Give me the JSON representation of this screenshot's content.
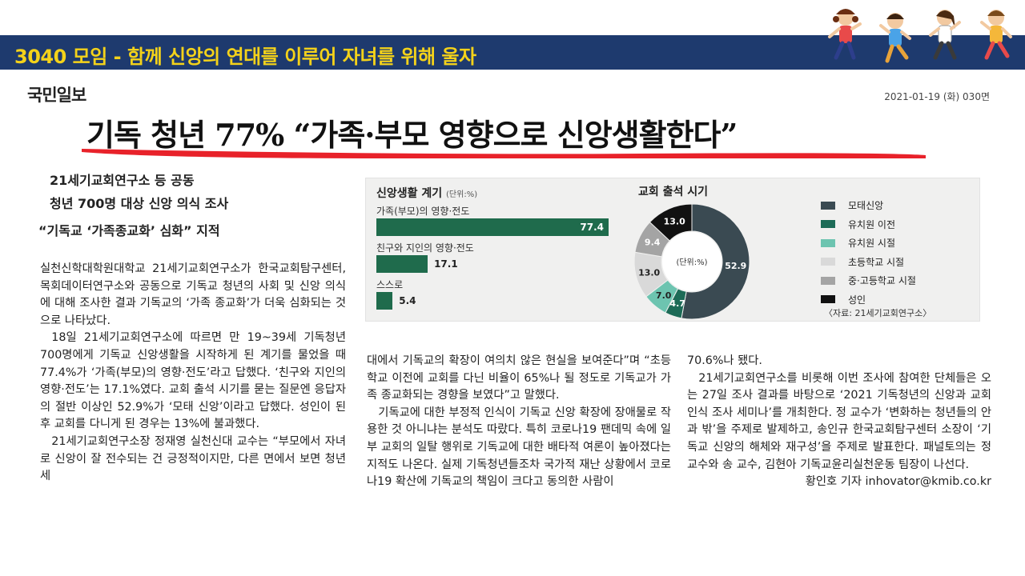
{
  "banner": {
    "title": "3040 모임 - 함께 신앙의 연대를 이루어 자녀를 위해 울자"
  },
  "newspaper": {
    "name": "국민일보",
    "date": "2021-01-19 (화) 030면"
  },
  "headline": "기독 청년 77% “가족·부모 영향으로 신앙생활한다”",
  "subheads": [
    "21세기교회연구소 등 공동",
    "청년 700명 대상 신앙 의식 조사",
    "“기독교 ‘가족종교화’ 심화” 지적"
  ],
  "body": {
    "col1": [
      "실천신학대학원대학교 21세기교회연구소가 한국교회탐구센터, 목회데이터연구소와 공동으로 기독교 청년의 사회 및 신앙 의식에 대해 조사한 결과 기독교의 ‘가족 종교화’가 더욱 심화되는 것으로 나타났다.",
      "18일 21세기교회연구소에 따르면 만 19~39세 기독청년 700명에게 기독교 신앙생활을 시작하게 된 계기를 물었을 때 77.4%가 ‘가족(부모)의 영향·전도’라고 답했다. ‘친구와 지인의 영향·전도’는 17.1%였다. 교회 출석 시기를 묻는 질문엔 응답자의 절반 이상인 52.9%가 ‘모태 신앙’이라고 답했다. 성인이 된 후 교회를 다니게 된 경우는 13%에 불과했다.",
      "21세기교회연구소장 정재영 실천신대 교수는 “부모에서 자녀로 신앙이 잘 전수되는 건 긍정적이지만, 다른 면에서 보면 청년세"
    ],
    "col2": [
      "대에서 기독교의 확장이 여의치 않은 현실을 보여준다”며 “초등학교 이전에 교회를 다닌 비율이 65%나 될 정도로 기독교가 가족 종교화되는 경향을 보였다”고 말했다.",
      "기독교에 대한 부정적 인식이 기독교 신앙 확장에 장애물로 작용한 것 아니냐는 분석도 따랐다. 특히 코로나19 팬데믹 속에 일부 교회의 일탈 행위로 기독교에 대한 배타적 여론이 높아졌다는 지적도 나온다. 실제 기독청년들조차 국가적 재난 상황에서 코로나19 확산에 기독교의 책임이 크다고 동의한 사람이"
    ],
    "col3": [
      "70.6%나 됐다.",
      "21세기교회연구소를 비롯해 이번 조사에 참여한 단체들은 오는 27일 조사 결과를 바탕으로 ‘2021 기독청년의 신앙과 교회 인식 조사 세미나’를 개최한다. 정 교수가 ‘변화하는 청년들의 안과 밖’을 주제로 발제하고, 송인규 한국교회탐구센터 소장이 ‘기독교 신앙의 해체와 재구성’을 주제로 발표한다. 패널토의는 정 교수와 송 교수, 김현아 기독교윤리실천운동 팀장이 나선다."
    ],
    "byline": "황인호 기자 inhovator@kmib.co.kr"
  },
  "chart_data": [
    {
      "type": "bar",
      "title": "신앙생활 계기",
      "unit": "(단위:%)",
      "categories": [
        "가족(부모)의 영향·전도",
        "친구와 지인의 영향·전도",
        "스스로"
      ],
      "values": [
        77.4,
        17.1,
        5.4
      ],
      "value_labels": [
        "77.4",
        "17.1",
        "5.4"
      ],
      "color": "#1f6b4c"
    },
    {
      "type": "pie",
      "title": "교회 출석 시기",
      "center_label": "(단위:%)",
      "categories": [
        "모태신앙",
        "유치원 이전",
        "유치원 시절",
        "초등학교 시절",
        "중·고등학교 시절",
        "성인"
      ],
      "values": [
        52.9,
        4.7,
        7.0,
        13.0,
        9.4,
        13.0
      ],
      "value_labels": [
        "52.9",
        "4.7",
        "7.0",
        "13.0",
        "9.4",
        "13.0"
      ],
      "colors": [
        "#3a4a52",
        "#1d6b57",
        "#6dc4b0",
        "#d9d9d9",
        "#a4a4a4",
        "#111111"
      ],
      "label_colors": [
        "#ffffff",
        "#ffffff",
        "#222222",
        "#222222",
        "#ffffff",
        "#ffffff"
      ],
      "source": "〈자료: 21세기교회연구소〉"
    }
  ]
}
